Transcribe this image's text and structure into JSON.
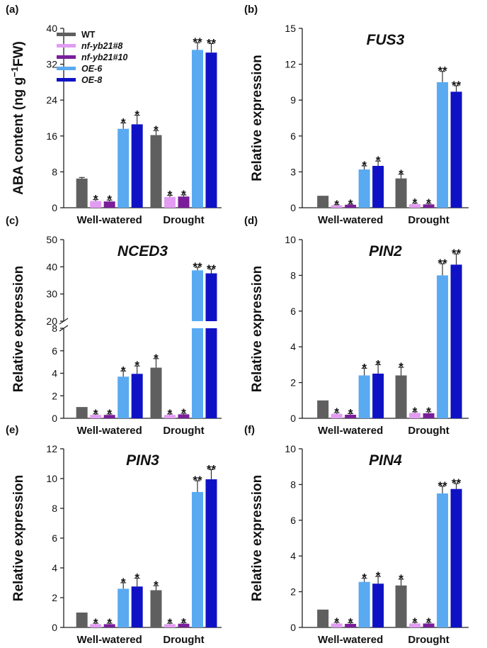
{
  "colors": {
    "WT": "#5f5f5f",
    "nf-yb21#8": "#e29cf2",
    "nf-yb21#10": "#7a1e9b",
    "OE-6": "#5aaaf2",
    "OE-8": "#0f12c4",
    "axis": "#222222",
    "error": "#222222"
  },
  "legend": [
    {
      "key": "WT",
      "label": "WT",
      "italic": false
    },
    {
      "key": "nf-yb21#8",
      "label": "nf-yb21#8",
      "italic": true
    },
    {
      "key": "nf-yb21#10",
      "label": "nf-yb21#10",
      "italic": true
    },
    {
      "key": "OE-6",
      "label": "OE-6",
      "italic": true
    },
    {
      "key": "OE-8",
      "label": "OE-8",
      "italic": true
    }
  ],
  "chart_data": [
    {
      "id": "a",
      "panel_label": "(a)",
      "title": "",
      "type": "bar",
      "ylabel": "ABA content (ng g−1FW)",
      "ylabel_parts": [
        "ABA content (ng g",
        "−1",
        "FW)"
      ],
      "ylim": [
        0,
        40
      ],
      "yticks": [
        0,
        8,
        16,
        24,
        32,
        40
      ],
      "categories": [
        "Well-watered",
        "Drought"
      ],
      "series": [
        {
          "name": "WT",
          "values": [
            6.5,
            16.2
          ],
          "errors": [
            0.25,
            1.0
          ],
          "sig": [
            "",
            "*"
          ]
        },
        {
          "name": "nf-yb21#8",
          "values": [
            1.5,
            2.4
          ],
          "errors": [
            0.3,
            0.35
          ],
          "sig": [
            "*",
            "*"
          ]
        },
        {
          "name": "nf-yb21#10",
          "values": [
            1.4,
            2.5
          ],
          "errors": [
            0.3,
            0.35
          ],
          "sig": [
            "*",
            "*"
          ]
        },
        {
          "name": "OE-6",
          "values": [
            17.6,
            35.2
          ],
          "errors": [
            1.3,
            1.6
          ],
          "sig": [
            "*",
            "**"
          ]
        },
        {
          "name": "OE-8",
          "values": [
            18.6,
            34.6
          ],
          "errors": [
            2.0,
            2.0
          ],
          "sig": [
            "*",
            "**"
          ]
        }
      ]
    },
    {
      "id": "b",
      "panel_label": "(b)",
      "title": "FUS3",
      "type": "bar",
      "ylabel": "Relative expression",
      "ylim": [
        0,
        15
      ],
      "yticks": [
        0,
        3,
        6,
        9,
        12,
        15
      ],
      "categories": [
        "Well-watered",
        "Drought"
      ],
      "series": [
        {
          "name": "WT",
          "values": [
            1.0,
            2.45
          ],
          "errors": [
            0.0,
            0.35
          ],
          "sig": [
            "",
            "*"
          ]
        },
        {
          "name": "nf-yb21#8",
          "values": [
            0.2,
            0.3
          ],
          "errors": [
            0.05,
            0.08
          ],
          "sig": [
            "*",
            "*"
          ]
        },
        {
          "name": "nf-yb21#10",
          "values": [
            0.25,
            0.28
          ],
          "errors": [
            0.05,
            0.08
          ],
          "sig": [
            "*",
            "*"
          ]
        },
        {
          "name": "OE-6",
          "values": [
            3.2,
            10.5
          ],
          "errors": [
            0.3,
            0.9
          ],
          "sig": [
            "*",
            "**"
          ]
        },
        {
          "name": "OE-8",
          "values": [
            3.5,
            9.7
          ],
          "errors": [
            0.4,
            0.5
          ],
          "sig": [
            "*",
            "**"
          ]
        }
      ]
    },
    {
      "id": "c",
      "panel_label": "(c)",
      "title": "NCED3",
      "type": "bar",
      "ylabel": "Relative expression",
      "broken_axis": {
        "lower": [
          0,
          8
        ],
        "upper": [
          20,
          50
        ]
      },
      "yticks_lower": [
        0,
        2,
        4,
        6,
        8
      ],
      "yticks_upper": [
        20,
        30,
        40,
        50
      ],
      "categories": [
        "Well-watered",
        "Drought"
      ],
      "series": [
        {
          "name": "WT",
          "values": [
            1.0,
            4.5
          ],
          "errors": [
            0.0,
            0.8
          ],
          "sig": [
            "",
            "*"
          ]
        },
        {
          "name": "nf-yb21#8",
          "values": [
            0.3,
            0.3
          ],
          "errors": [
            0.08,
            0.08
          ],
          "sig": [
            "*",
            "*"
          ]
        },
        {
          "name": "nf-yb21#10",
          "values": [
            0.3,
            0.35
          ],
          "errors": [
            0.08,
            0.08
          ],
          "sig": [
            "*",
            "*"
          ]
        },
        {
          "name": "OE-6",
          "values": [
            3.7,
            38.7
          ],
          "errors": [
            0.5,
            1.1
          ],
          "sig": [
            "*",
            "**"
          ]
        },
        {
          "name": "OE-8",
          "values": [
            3.95,
            37.6
          ],
          "errors": [
            0.7,
            1.5
          ],
          "sig": [
            "*",
            "**"
          ]
        }
      ]
    },
    {
      "id": "d",
      "panel_label": "(d)",
      "title": "PIN2",
      "type": "bar",
      "ylabel": "Relative expression",
      "ylim": [
        0,
        10
      ],
      "yticks": [
        0,
        2,
        4,
        6,
        8,
        10
      ],
      "categories": [
        "Well-watered",
        "Drought"
      ],
      "series": [
        {
          "name": "WT",
          "values": [
            1.0,
            2.4
          ],
          "errors": [
            0.0,
            0.45
          ],
          "sig": [
            "",
            "*"
          ]
        },
        {
          "name": "nf-yb21#8",
          "values": [
            0.25,
            0.3
          ],
          "errors": [
            0.06,
            0.06
          ],
          "sig": [
            "*",
            "*"
          ]
        },
        {
          "name": "nf-yb21#10",
          "values": [
            0.2,
            0.28
          ],
          "errors": [
            0.06,
            0.08
          ],
          "sig": [
            "*",
            "*"
          ]
        },
        {
          "name": "OE-6",
          "values": [
            2.4,
            8.0
          ],
          "errors": [
            0.4,
            0.65
          ],
          "sig": [
            "*",
            "**"
          ]
        },
        {
          "name": "OE-8",
          "values": [
            2.5,
            8.6
          ],
          "errors": [
            0.5,
            0.6
          ],
          "sig": [
            "*",
            "**"
          ]
        }
      ]
    },
    {
      "id": "e",
      "panel_label": "(e)",
      "title": "PIN3",
      "type": "bar",
      "ylabel": "Relative expression",
      "ylim": [
        0,
        12
      ],
      "yticks": [
        0,
        2,
        4,
        6,
        8,
        10,
        12
      ],
      "categories": [
        "Well-watered",
        "Drought"
      ],
      "series": [
        {
          "name": "WT",
          "values": [
            1.0,
            2.5
          ],
          "errors": [
            0.0,
            0.3
          ],
          "sig": [
            "",
            "*"
          ]
        },
        {
          "name": "nf-yb21#8",
          "values": [
            0.22,
            0.22
          ],
          "errors": [
            0.06,
            0.06
          ],
          "sig": [
            "*",
            "*"
          ]
        },
        {
          "name": "nf-yb21#10",
          "values": [
            0.22,
            0.25
          ],
          "errors": [
            0.06,
            0.06
          ],
          "sig": [
            "*",
            "*"
          ]
        },
        {
          "name": "OE-6",
          "values": [
            2.6,
            9.1
          ],
          "errors": [
            0.4,
            0.75
          ],
          "sig": [
            "*",
            "**"
          ]
        },
        {
          "name": "OE-8",
          "values": [
            2.75,
            9.95
          ],
          "errors": [
            0.55,
            0.65
          ],
          "sig": [
            "*",
            "**"
          ]
        }
      ]
    },
    {
      "id": "f",
      "panel_label": "(f)",
      "title": "PIN4",
      "type": "bar",
      "ylabel": "Relative expression",
      "ylim": [
        0,
        10
      ],
      "yticks": [
        0,
        2,
        4,
        6,
        8,
        10
      ],
      "categories": [
        "Well-watered",
        "Drought"
      ],
      "series": [
        {
          "name": "WT",
          "values": [
            1.0,
            2.35
          ],
          "errors": [
            0.0,
            0.35
          ],
          "sig": [
            "",
            "*"
          ]
        },
        {
          "name": "nf-yb21#8",
          "values": [
            0.22,
            0.22
          ],
          "errors": [
            0.06,
            0.06
          ],
          "sig": [
            "*",
            "*"
          ]
        },
        {
          "name": "nf-yb21#10",
          "values": [
            0.2,
            0.22
          ],
          "errors": [
            0.06,
            0.06
          ],
          "sig": [
            "*",
            "*"
          ]
        },
        {
          "name": "OE-6",
          "values": [
            2.55,
            7.5
          ],
          "errors": [
            0.2,
            0.4
          ],
          "sig": [
            "*",
            "**"
          ]
        },
        {
          "name": "OE-8",
          "values": [
            2.45,
            7.75
          ],
          "errors": [
            0.4,
            0.3
          ],
          "sig": [
            "*",
            "**"
          ]
        }
      ]
    }
  ]
}
